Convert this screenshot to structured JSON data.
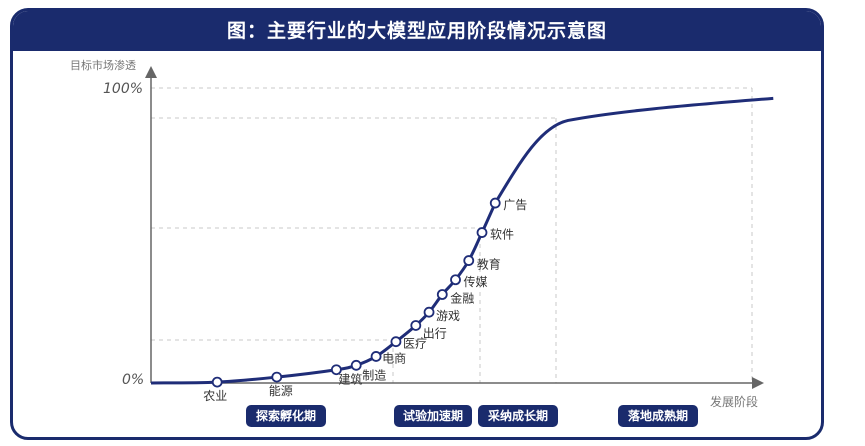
{
  "chart_data": {
    "type": "line",
    "title": "图：主要行业的大模型应用阶段情况示意图",
    "ylabel": "目标市场渗透",
    "xlabel": "发展阶段",
    "y_ticks": [
      "100%",
      "0%"
    ],
    "ylim": [
      0,
      100
    ],
    "points": [
      {
        "label": "农业",
        "x": 1.0,
        "y": 0.3
      },
      {
        "label": "能源",
        "x": 1.9,
        "y": 2.0
      },
      {
        "label": "建筑",
        "x": 2.8,
        "y": 4.5
      },
      {
        "label": "制造",
        "x": 3.1,
        "y": 6.0
      },
      {
        "label": "电商",
        "x": 3.4,
        "y": 9.0
      },
      {
        "label": "医疗",
        "x": 3.7,
        "y": 14.0
      },
      {
        "label": "出行",
        "x": 4.0,
        "y": 19.5
      },
      {
        "label": "游戏",
        "x": 4.2,
        "y": 24.0
      },
      {
        "label": "金融",
        "x": 4.4,
        "y": 30.0
      },
      {
        "label": "传媒",
        "x": 4.6,
        "y": 35.0
      },
      {
        "label": "教育",
        "x": 4.8,
        "y": 41.5
      },
      {
        "label": "软件",
        "x": 5.0,
        "y": 51.0
      },
      {
        "label": "广告",
        "x": 5.2,
        "y": 61.0
      }
    ],
    "stages": [
      "探索孵化期",
      "试验加速期",
      "采纳成长期",
      "落地成熟期"
    ]
  },
  "colors": {
    "navy": "#1a2b6d",
    "curve": "#1f2d78",
    "grid": "#c8c8c8"
  }
}
